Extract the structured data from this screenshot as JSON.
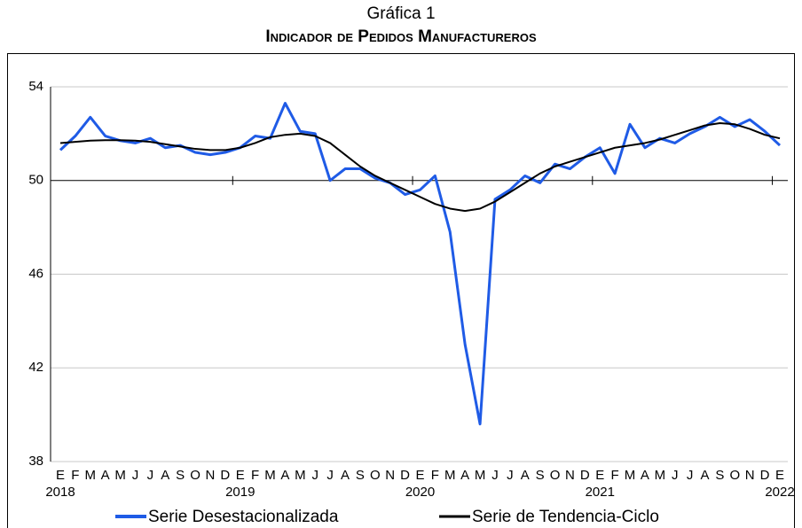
{
  "chart_data": {
    "type": "line",
    "title": "Gráfica 1",
    "subtitle": "Indicador de Pedidos Manufactureros",
    "categories": [
      "E",
      "F",
      "M",
      "A",
      "M",
      "J",
      "J",
      "A",
      "S",
      "O",
      "N",
      "D",
      "E",
      "F",
      "M",
      "A",
      "M",
      "J",
      "J",
      "A",
      "S",
      "O",
      "N",
      "D",
      "E",
      "F",
      "M",
      "A",
      "M",
      "J",
      "J",
      "A",
      "S",
      "O",
      "N",
      "D",
      "E",
      "F",
      "M",
      "A",
      "M",
      "J",
      "J",
      "A",
      "S",
      "O",
      "N",
      "D",
      "E"
    ],
    "category_years": [
      "2018",
      null,
      null,
      null,
      null,
      null,
      null,
      null,
      null,
      null,
      null,
      null,
      "2019",
      null,
      null,
      null,
      null,
      null,
      null,
      null,
      null,
      null,
      null,
      null,
      "2020",
      null,
      null,
      null,
      null,
      null,
      null,
      null,
      null,
      null,
      null,
      null,
      "2021",
      null,
      null,
      null,
      null,
      null,
      null,
      null,
      null,
      null,
      null,
      null,
      "2022"
    ],
    "series": [
      {
        "name": "Serie Desestacionalizada",
        "color": "#1f5be6",
        "width": 3,
        "values": [
          51.3,
          51.9,
          52.7,
          51.9,
          51.7,
          51.6,
          51.8,
          51.4,
          51.5,
          51.2,
          51.1,
          51.2,
          51.4,
          51.9,
          51.8,
          53.3,
          52.1,
          52.0,
          50.0,
          50.5,
          50.5,
          50.1,
          49.9,
          49.4,
          49.6,
          50.2,
          47.8,
          43.0,
          39.6,
          49.2,
          49.6,
          50.2,
          49.9,
          50.7,
          50.5,
          51.0,
          51.4,
          50.3,
          52.4,
          51.4,
          51.8,
          51.6,
          52.0,
          52.3,
          52.7,
          52.3,
          52.6,
          52.1,
          51.5
        ]
      },
      {
        "name": "Serie de Tendencia-Ciclo",
        "color": "#000000",
        "width": 2,
        "values": [
          51.6,
          51.65,
          51.7,
          51.72,
          51.72,
          51.7,
          51.65,
          51.55,
          51.45,
          51.35,
          51.3,
          51.3,
          51.4,
          51.6,
          51.85,
          51.95,
          52.0,
          51.9,
          51.6,
          51.1,
          50.6,
          50.2,
          49.9,
          49.6,
          49.3,
          49.0,
          48.8,
          48.7,
          48.8,
          49.1,
          49.5,
          49.9,
          50.3,
          50.6,
          50.8,
          51.0,
          51.2,
          51.4,
          51.5,
          51.6,
          51.75,
          51.95,
          52.15,
          52.35,
          52.45,
          52.4,
          52.2,
          51.95,
          51.8
        ]
      }
    ],
    "ylim": [
      38,
      54
    ],
    "yticks": [
      38,
      42,
      46,
      50,
      54
    ],
    "x_axis_at": 50,
    "grid": true
  }
}
